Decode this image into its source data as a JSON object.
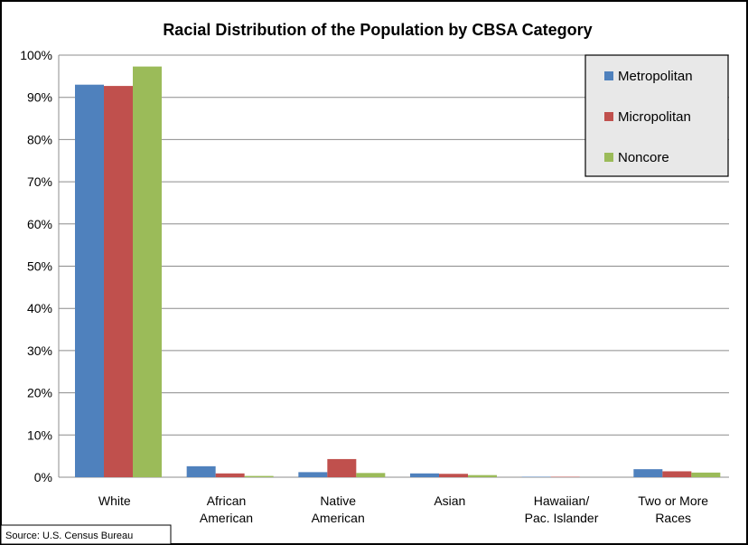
{
  "chart_data": {
    "type": "bar",
    "title": "Racial Distribution of the Population by CBSA Category",
    "xlabel": "",
    "ylabel": "",
    "ylim": [
      0,
      100
    ],
    "y_tick_step": 10,
    "y_tick_suffix": "%",
    "grid": true,
    "legend_position": "top-right",
    "categories": [
      [
        "White"
      ],
      [
        "African",
        "American"
      ],
      [
        "Native",
        "American"
      ],
      [
        "Asian"
      ],
      [
        "Hawaiian/",
        "Pac. Islander"
      ],
      [
        "Two or More",
        "Races"
      ]
    ],
    "series": [
      {
        "name": "Metropolitan",
        "color": "#4f81bd",
        "values": [
          93.0,
          2.6,
          1.2,
          0.9,
          0.1,
          1.9
        ]
      },
      {
        "name": "Micropolitan",
        "color": "#c0504d",
        "values": [
          92.7,
          0.9,
          4.3,
          0.8,
          0.1,
          1.4
        ]
      },
      {
        "name": "Noncore",
        "color": "#9bbb59",
        "values": [
          97.3,
          0.3,
          1.0,
          0.5,
          0.0,
          1.1
        ]
      }
    ]
  },
  "source_note": "Source: U.S. Census Bureau"
}
